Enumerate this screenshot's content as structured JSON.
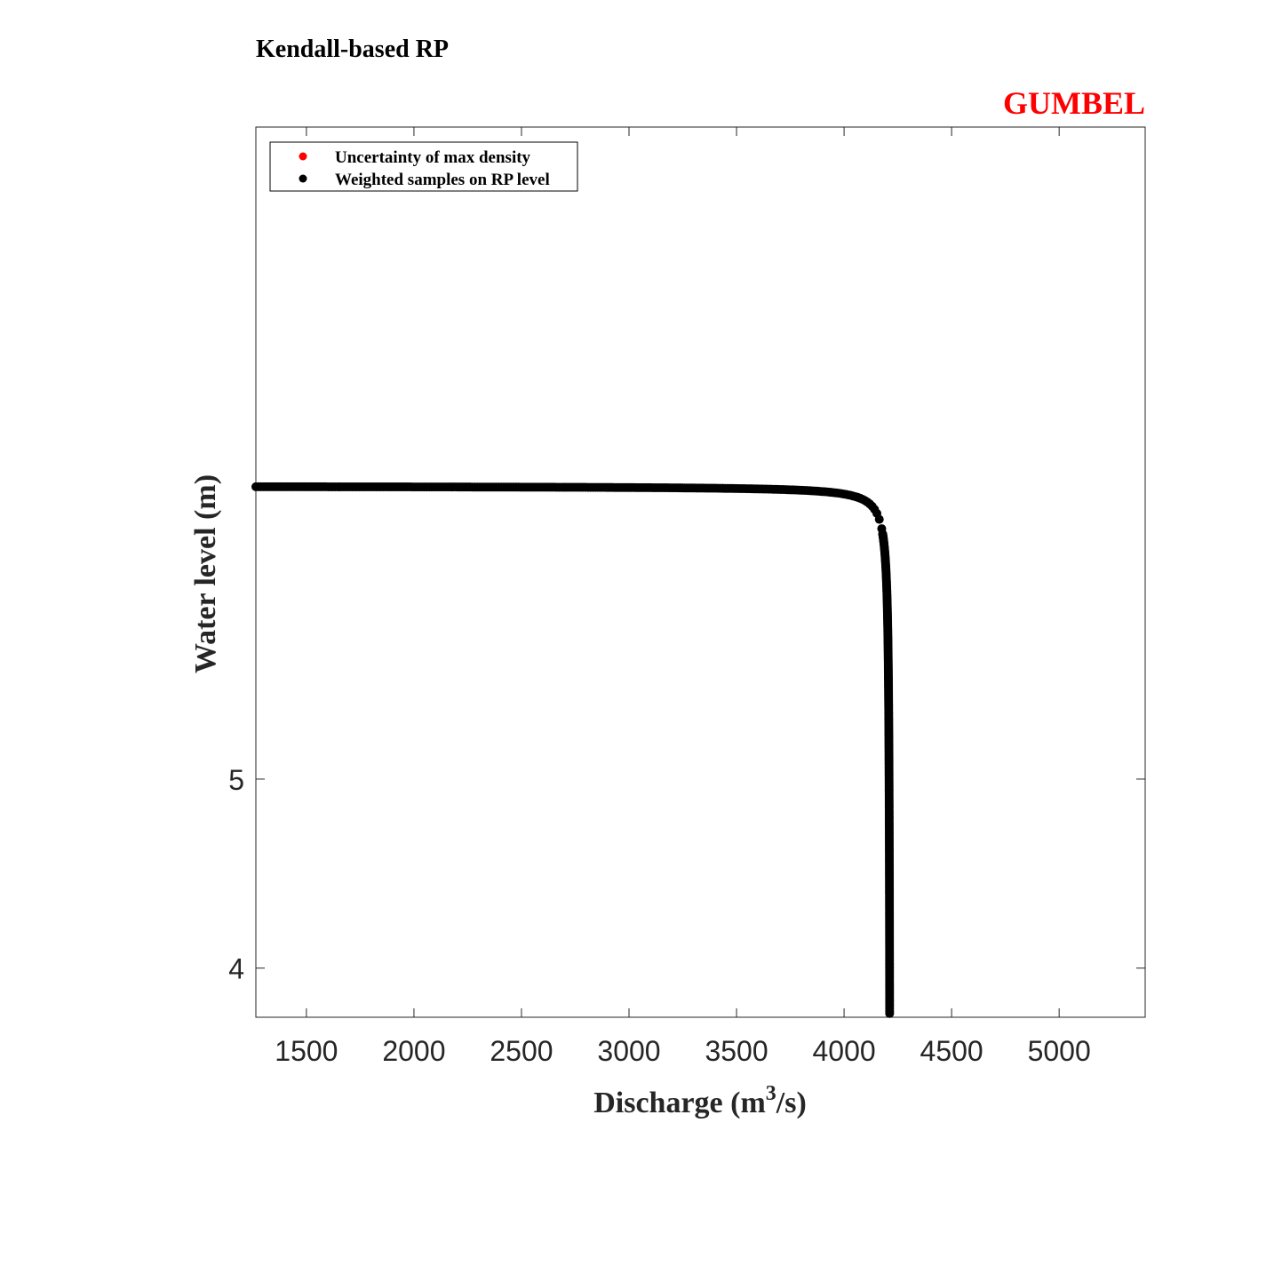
{
  "title": "Kendall-based RP",
  "corner_label": "GUMBEL",
  "colors": {
    "corner_label": "#ff0000",
    "marker_max_density": "#ff0000",
    "marker_weighted": "#000000",
    "axes": "#262626",
    "text": "#000000"
  },
  "chart_data": {
    "type": "scatter",
    "title": "Kendall-based RP",
    "xlabel_main": "Discharge (m",
    "xlabel_sup": "3",
    "xlabel_tail": "/s)",
    "ylabel": "Water level (m)",
    "xlim": [
      1265,
      5400
    ],
    "ylim": [
      3.74,
      8.45
    ],
    "xticks": [
      1500,
      2000,
      2500,
      3000,
      3500,
      4000,
      4500,
      5000
    ],
    "xtick_labels": [
      "1500",
      "2000",
      "2500",
      "3000",
      "3500",
      "4000",
      "4500",
      "5000"
    ],
    "yticks": [
      4,
      5
    ],
    "ytick_labels": [
      "4",
      "5"
    ],
    "grid": false,
    "legend_position": "top-left",
    "series": [
      {
        "name": "Uncertainty of max density",
        "color": "#ff0000",
        "points": []
      },
      {
        "name": "Weighted samples on RP level",
        "color": "#000000",
        "asymptote_x": 4215,
        "asymptote_y": 6.55,
        "knee_x": 4180,
        "knee_y": 6.4,
        "x_range": [
          1265,
          4215
        ],
        "y_range": [
          3.76,
          6.55
        ]
      }
    ]
  }
}
